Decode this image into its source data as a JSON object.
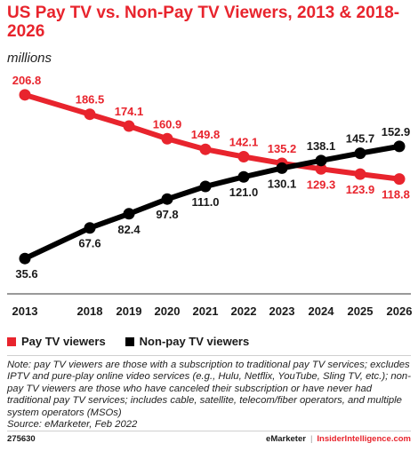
{
  "header": {
    "title": "US Pay TV vs. Non-Pay TV Viewers, 2013 & 2018-2026",
    "subtitle": "millions"
  },
  "chart_data": {
    "type": "line",
    "categories": [
      "2013",
      "2018",
      "2019",
      "2020",
      "2021",
      "2022",
      "2023",
      "2024",
      "2025",
      "2026"
    ],
    "series": [
      {
        "name": "Pay TV viewers",
        "color": "#e8242d",
        "values": [
          206.8,
          186.5,
          174.1,
          160.9,
          149.8,
          142.1,
          135.2,
          129.3,
          123.9,
          118.8
        ],
        "labels": [
          "206.8",
          "186.5",
          "174.1",
          "160.9",
          "149.8",
          "142.1",
          "135.2",
          "129.3",
          "123.9",
          "118.8"
        ]
      },
      {
        "name": "Non-pay TV viewers",
        "color": "#000000",
        "values": [
          35.6,
          67.6,
          82.4,
          97.8,
          111.0,
          121.0,
          130.1,
          138.1,
          145.7,
          152.9
        ],
        "labels": [
          "35.6",
          "67.6",
          "82.4",
          "97.8",
          "111.0",
          "121.0",
          "130.1",
          "138.1",
          "145.7",
          "152.9"
        ]
      }
    ],
    "ylim": [
      20,
      215
    ],
    "grid": false,
    "legend_position": "bottom-left"
  },
  "legend": {
    "pay_label": "Pay TV viewers",
    "nonpay_label": "Non-pay TV viewers"
  },
  "note": {
    "text": "Note: pay TV viewers are those with a subscription to traditional pay TV services; excludes IPTV and pure-play online video services (e.g., Hulu, Netflix, YouTube, Sling TV, etc.); non-pay TV viewers are those who have canceled their subscription or have never had traditional pay TV services; includes cable, satellite, telecom/fiber operators, and multiple system operators (MSOs)",
    "source": "Source: eMarketer, Feb 2022"
  },
  "footer": {
    "chart_id": "275630",
    "brand": "eMarketer",
    "separator": "|",
    "site": "InsiderIntelligence.com"
  }
}
